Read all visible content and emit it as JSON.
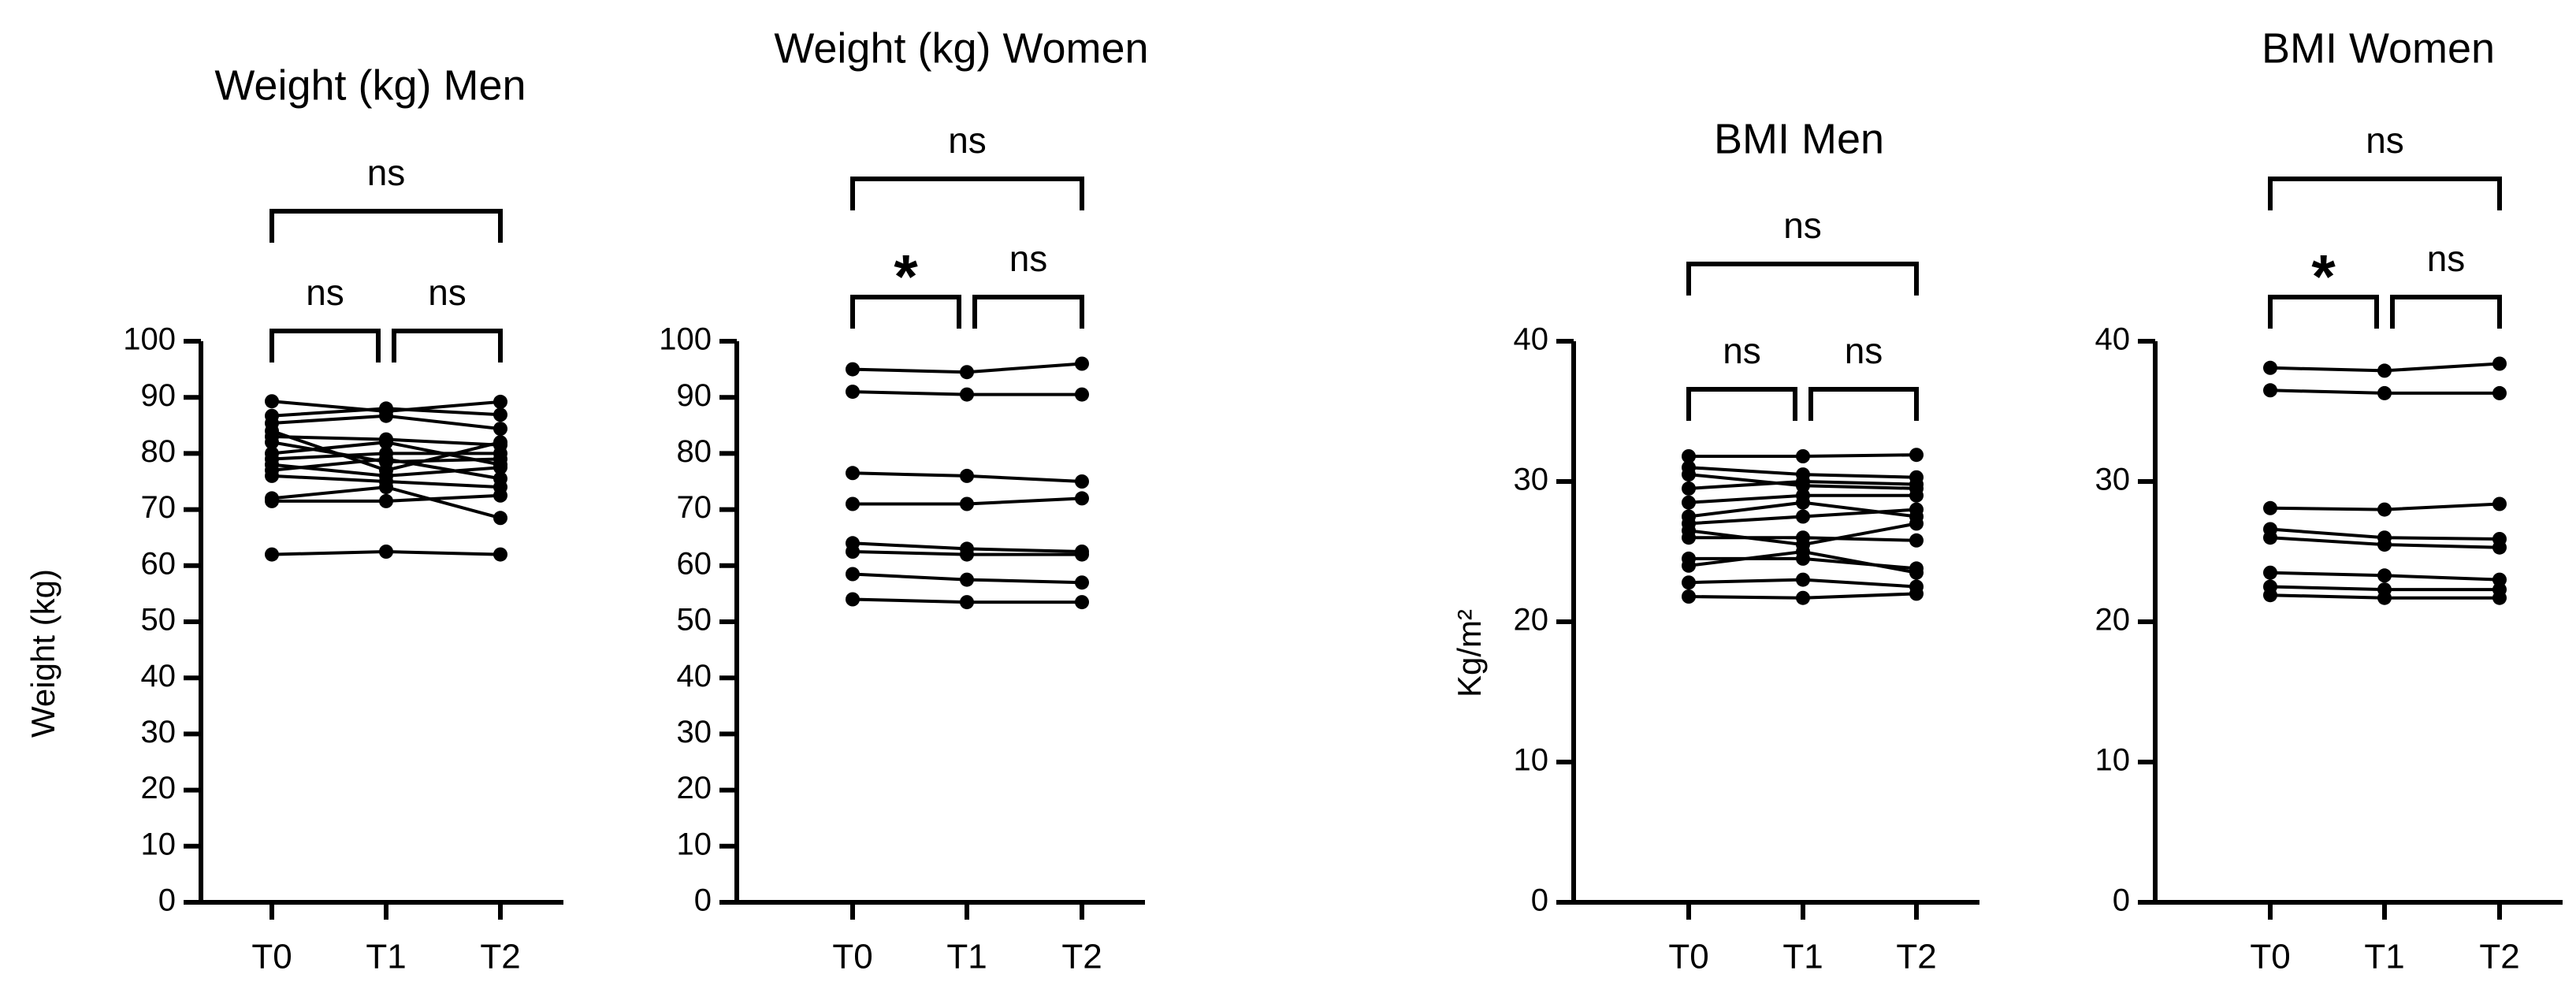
{
  "chart_data": [
    {
      "type": "line",
      "title": "Weight (kg) Men",
      "xlabel": "",
      "ylabel": "Weight (kg)",
      "categories": [
        "T0",
        "T1",
        "T2"
      ],
      "ylim": [
        0,
        100
      ],
      "yticks": [
        0,
        10,
        20,
        30,
        40,
        50,
        60,
        70,
        80,
        90,
        100
      ],
      "grid": false,
      "series": [
        {
          "values": [
            89.3,
            87.5,
            89.2
          ]
        },
        {
          "values": [
            86.7,
            88.0,
            86.9
          ]
        },
        {
          "values": [
            85.4,
            86.7,
            84.4
          ]
        },
        {
          "values": [
            84.0,
            77.0,
            82.0
          ]
        },
        {
          "values": [
            83.0,
            82.5,
            81.5
          ]
        },
        {
          "values": [
            82.0,
            78.5,
            79.0
          ]
        },
        {
          "values": [
            80.0,
            82.0,
            78.0
          ]
        },
        {
          "values": [
            79.0,
            80.0,
            80.0
          ]
        },
        {
          "values": [
            78.0,
            76.0,
            77.5
          ]
        },
        {
          "values": [
            77.0,
            79.0,
            75.5
          ]
        },
        {
          "values": [
            76.0,
            75.0,
            74.0
          ]
        },
        {
          "values": [
            71.5,
            71.5,
            72.5
          ]
        },
        {
          "values": [
            72.0,
            74.0,
            68.5
          ]
        },
        {
          "values": [
            62.0,
            62.5,
            62.0
          ]
        }
      ],
      "annotations": [
        {
          "from": "T0",
          "to": "T1",
          "label": "ns"
        },
        {
          "from": "T1",
          "to": "T2",
          "label": "ns"
        },
        {
          "from": "T0",
          "to": "T2",
          "label": "ns"
        }
      ]
    },
    {
      "type": "line",
      "title": "Weight (kg) Women",
      "xlabel": "",
      "ylabel": "",
      "categories": [
        "T0",
        "T1",
        "T2"
      ],
      "ylim": [
        0,
        100
      ],
      "yticks": [
        0,
        10,
        20,
        30,
        40,
        50,
        60,
        70,
        80,
        90,
        100
      ],
      "grid": false,
      "series": [
        {
          "values": [
            95.0,
            94.5,
            96.0
          ]
        },
        {
          "values": [
            91.0,
            90.5,
            90.5
          ]
        },
        {
          "values": [
            76.5,
            76.0,
            75.0
          ]
        },
        {
          "values": [
            71.0,
            71.0,
            72.0
          ]
        },
        {
          "values": [
            64.0,
            63.0,
            62.5
          ]
        },
        {
          "values": [
            62.5,
            62.0,
            62.0
          ]
        },
        {
          "values": [
            58.5,
            57.5,
            57.0
          ]
        },
        {
          "values": [
            54.0,
            53.5,
            53.5
          ]
        }
      ],
      "annotations": [
        {
          "from": "T0",
          "to": "T1",
          "label": "*"
        },
        {
          "from": "T1",
          "to": "T2",
          "label": "ns"
        },
        {
          "from": "T0",
          "to": "T2",
          "label": "ns"
        }
      ]
    },
    {
      "type": "line",
      "title": "BMI Men",
      "xlabel": "",
      "ylabel": "Kg/m²",
      "categories": [
        "T0",
        "T1",
        "T2"
      ],
      "ylim": [
        0,
        40
      ],
      "yticks": [
        0,
        10,
        20,
        30,
        40
      ],
      "grid": false,
      "series": [
        {
          "values": [
            31.8,
            31.8,
            31.9
          ]
        },
        {
          "values": [
            31.0,
            30.5,
            30.3
          ]
        },
        {
          "values": [
            30.5,
            29.7,
            29.5
          ]
        },
        {
          "values": [
            29.5,
            30.0,
            29.8
          ]
        },
        {
          "values": [
            28.5,
            29.0,
            29.0
          ]
        },
        {
          "values": [
            27.5,
            28.5,
            27.5
          ]
        },
        {
          "values": [
            27.0,
            27.5,
            28.0
          ]
        },
        {
          "values": [
            26.5,
            25.5,
            27.0
          ]
        },
        {
          "values": [
            26.0,
            26.0,
            25.8
          ]
        },
        {
          "values": [
            24.5,
            24.5,
            23.8
          ]
        },
        {
          "values": [
            24.0,
            25.0,
            23.5
          ]
        },
        {
          "values": [
            22.8,
            23.0,
            22.5
          ]
        },
        {
          "values": [
            21.8,
            21.7,
            22.0
          ]
        }
      ],
      "annotations": [
        {
          "from": "T0",
          "to": "T1",
          "label": "ns"
        },
        {
          "from": "T1",
          "to": "T2",
          "label": "ns"
        },
        {
          "from": "T0",
          "to": "T2",
          "label": "ns"
        }
      ]
    },
    {
      "type": "line",
      "title": "BMI Women",
      "xlabel": "",
      "ylabel": "",
      "categories": [
        "T0",
        "T1",
        "T2"
      ],
      "ylim": [
        0,
        40
      ],
      "yticks": [
        0,
        10,
        20,
        30,
        40
      ],
      "grid": false,
      "series": [
        {
          "values": [
            38.1,
            37.9,
            38.4
          ]
        },
        {
          "values": [
            36.5,
            36.3,
            36.3
          ]
        },
        {
          "values": [
            28.1,
            28.0,
            28.4
          ]
        },
        {
          "values": [
            26.6,
            26.0,
            25.9
          ]
        },
        {
          "values": [
            26.0,
            25.5,
            25.3
          ]
        },
        {
          "values": [
            23.5,
            23.3,
            23.0
          ]
        },
        {
          "values": [
            22.5,
            22.3,
            22.3
          ]
        },
        {
          "values": [
            21.9,
            21.7,
            21.7
          ]
        }
      ],
      "annotations": [
        {
          "from": "T0",
          "to": "T1",
          "label": "*"
        },
        {
          "from": "T1",
          "to": "T2",
          "label": "ns"
        },
        {
          "from": "T0",
          "to": "T2",
          "label": "ns"
        }
      ]
    }
  ]
}
